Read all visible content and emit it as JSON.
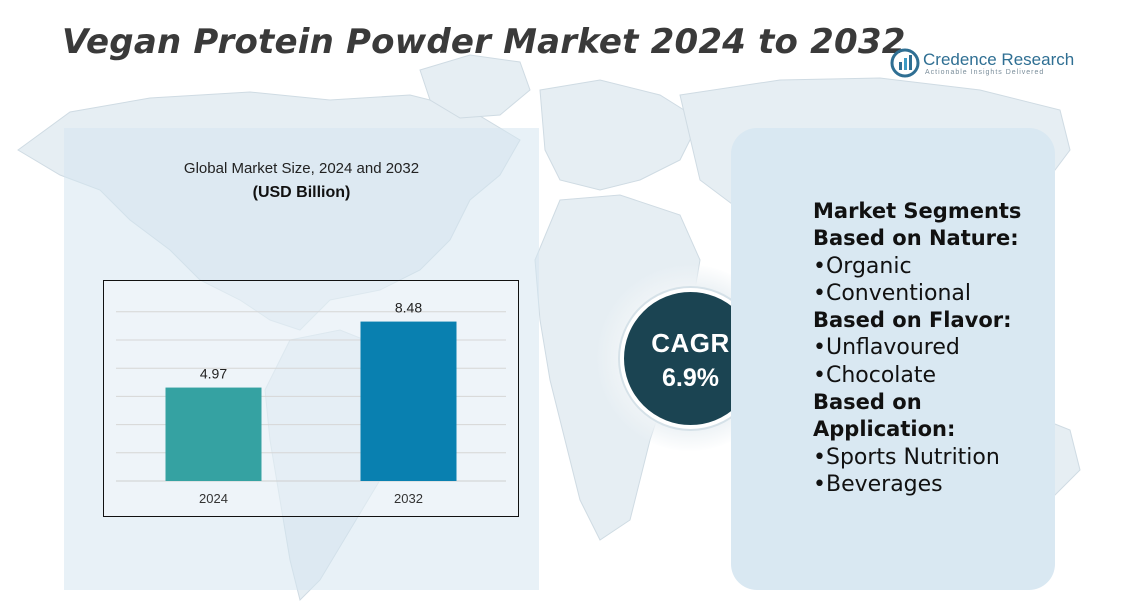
{
  "title": "Vegan Protein Powder Market 2024 to 2032",
  "logo": {
    "name": "Credence Research",
    "tagline": "Actionable Insights Delivered"
  },
  "chart_data": {
    "type": "bar",
    "title": "Global Market Size, 2024 and 2032",
    "unit": "(USD Billion)",
    "categories": [
      "2024",
      "2032"
    ],
    "values": [
      4.97,
      8.48
    ],
    "colors": [
      "#35a2a2",
      "#0980b0"
    ],
    "ylim": [
      0,
      10
    ],
    "grid": true
  },
  "cagr": {
    "label": "CAGR",
    "value": "6.9%"
  },
  "segments": {
    "rows": [
      {
        "text": "Market Segments",
        "kind": "head"
      },
      {
        "text": "Based on Nature:",
        "kind": "head"
      },
      {
        "text": "•Organic",
        "kind": "item"
      },
      {
        "text": "•Conventional",
        "kind": "item"
      },
      {
        "text": "Based on Flavor:",
        "kind": "head"
      },
      {
        "text": "•Unflavoured",
        "kind": "item"
      },
      {
        "text": "•Chocolate",
        "kind": "item"
      },
      {
        "text": "Based on",
        "kind": "head"
      },
      {
        "text": "Application:",
        "kind": "head"
      },
      {
        "text": "•Sports Nutrition",
        "kind": "item"
      },
      {
        "text": "•Beverages",
        "kind": "item"
      }
    ]
  }
}
